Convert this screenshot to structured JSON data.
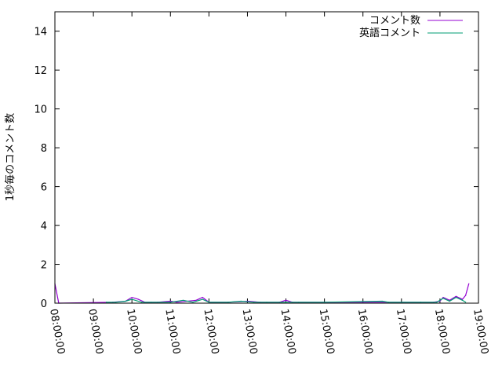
{
  "chart_data": {
    "type": "line",
    "ylabel": "1秒毎のコメント数",
    "xlabel": "",
    "ylim": [
      0,
      15
    ],
    "xlim": [
      "08:00:00",
      "19:00:00"
    ],
    "yticks": [
      "0",
      "2",
      "4",
      "6",
      "8",
      "10",
      "12",
      "14"
    ],
    "xticks": [
      "08:00:00",
      "09:00:00",
      "10:00:00",
      "11:00:00",
      "12:00:00",
      "13:00:00",
      "14:00:00",
      "15:00:00",
      "16:00:00",
      "17:00:00",
      "18:00:00",
      "19:00:00"
    ],
    "legend_position": "top-right",
    "grid": false,
    "series": [
      {
        "name": "コメント数",
        "color": "#9400d3",
        "x": [
          "08:00",
          "08:06",
          "09:30",
          "09:50",
          "10:00",
          "10:10",
          "10:20",
          "10:40",
          "11:00",
          "11:10",
          "11:40",
          "11:50",
          "12:00",
          "12:30",
          "13:00",
          "13:20",
          "13:50",
          "14:00",
          "14:10",
          "15:00",
          "17:30",
          "17:50",
          "18:00",
          "18:05",
          "18:15",
          "18:25",
          "18:35",
          "18:40",
          "18:45"
        ],
        "y": [
          1.0,
          0,
          0.05,
          0.1,
          0.3,
          0.2,
          0.05,
          0.05,
          0.1,
          0.05,
          0.15,
          0.3,
          0.05,
          0.05,
          0.1,
          0.05,
          0.05,
          0.15,
          0.05,
          0.05,
          0.05,
          0.05,
          0.1,
          0.3,
          0.15,
          0.35,
          0.2,
          0.4,
          1.0
        ]
      },
      {
        "name": "英語コメント",
        "color": "#009e73",
        "x": [
          "09:20",
          "09:35",
          "09:50",
          "10:00",
          "10:15",
          "10:30",
          "11:00",
          "11:20",
          "11:35",
          "11:50",
          "12:00",
          "12:30",
          "12:50",
          "13:10",
          "13:30",
          "14:00",
          "14:20",
          "15:00",
          "16:30",
          "16:40",
          "17:30",
          "17:55",
          "18:05",
          "18:15",
          "18:25",
          "18:35",
          "18:40"
        ],
        "y": [
          0.05,
          0.05,
          0.1,
          0.2,
          0.05,
          0.05,
          0.05,
          0.15,
          0.05,
          0.2,
          0.05,
          0.05,
          0.1,
          0.05,
          0.05,
          0.05,
          0.05,
          0.05,
          0.1,
          0.05,
          0.05,
          0.05,
          0.25,
          0.1,
          0.3,
          0.15,
          0.05
        ]
      }
    ]
  }
}
